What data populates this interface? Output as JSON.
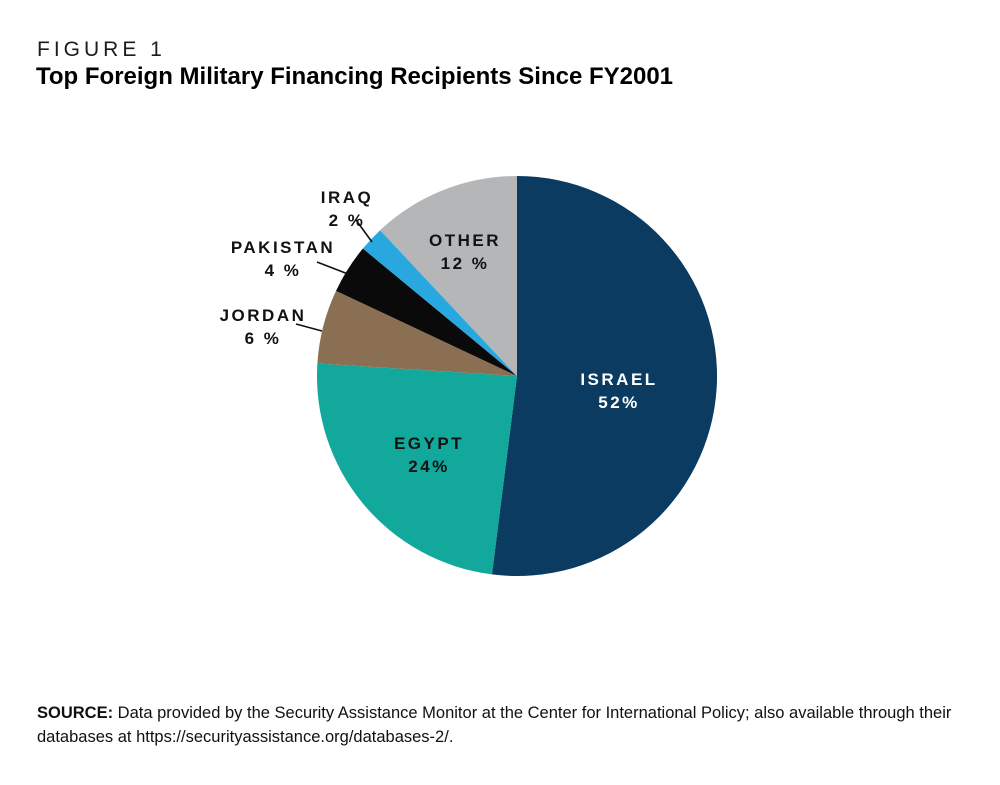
{
  "figure": {
    "label": "FIGURE 1",
    "title": "Top Foreign Military Financing Recipients Since FY2001"
  },
  "source": {
    "prefix": "SOURCE:",
    "text": " Data provided by the Security Assistance Monitor at the Center for International Policy; also available through their databases at https://securityassistance.org/databases-2/."
  },
  "chart_data": {
    "type": "pie",
    "title": "Top Foreign Military Financing Recipients Since FY2001",
    "figure_label": "FIGURE 1",
    "direction": "clockwise",
    "start_angle_deg": 0,
    "legend_position": "none",
    "labels_on_chart": true,
    "slices": [
      {
        "label": "ISRAEL",
        "value": 52,
        "pct_label": "52%",
        "color": "#0B3B61",
        "label_color": "#FFFFFF",
        "label_placement": "inside"
      },
      {
        "label": "EGYPT",
        "value": 24,
        "pct_label": "24%",
        "color": "#12A89B",
        "label_color": "#121212",
        "label_placement": "inside"
      },
      {
        "label": "JORDAN",
        "value": 6,
        "pct_label": "6 %",
        "color": "#8A6F52",
        "label_color": "#121212",
        "label_placement": "outside"
      },
      {
        "label": "PAKISTAN",
        "value": 4,
        "pct_label": "4 %",
        "color": "#0A0A0A",
        "label_color": "#121212",
        "label_placement": "outside"
      },
      {
        "label": "IRAQ",
        "value": 2,
        "pct_label": "2 %",
        "color": "#29A8E0",
        "label_color": "#121212",
        "label_placement": "outside"
      },
      {
        "label": "OTHER",
        "value": 12,
        "pct_label": "12 %",
        "color": "#B4B6B8",
        "label_color": "#121212",
        "label_placement": "inside"
      }
    ]
  }
}
